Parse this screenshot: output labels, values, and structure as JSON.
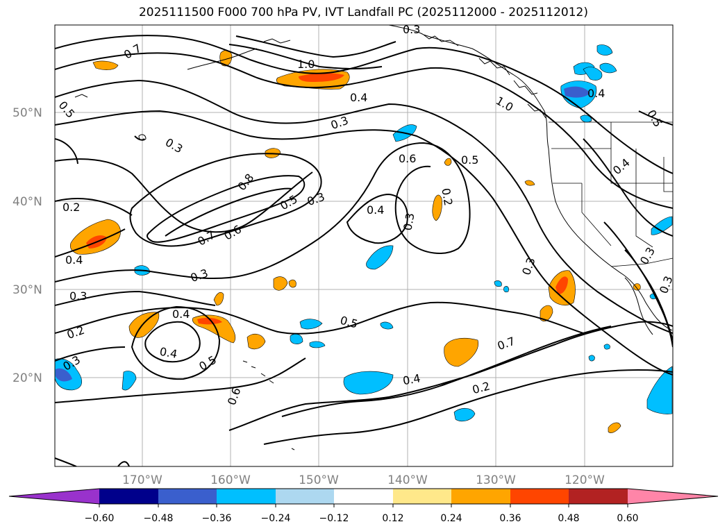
{
  "title": "2025111500 F000 700 hPa PV, IVT Landfall PC (2025112000 - 2025112012)",
  "map": {
    "lat_labels": [
      "50°N",
      "40°N",
      "30°N",
      "20°N"
    ],
    "lon_labels": [
      "170°W",
      "160°W",
      "150°W",
      "140°W",
      "130°W",
      "120°W"
    ],
    "contour_labels": [
      "0.7",
      "1.0",
      "0.4",
      "0.5",
      "0.3",
      "0.3",
      "0.6",
      "0.5",
      "0.8",
      "0.5",
      "0.3",
      "0.2",
      "0.4",
      "0.2",
      "0.3",
      "0.7",
      "0.6",
      "0.4",
      "0.3",
      "0.3",
      "0.3",
      "0.2",
      "0.4",
      "0.5",
      "0.3",
      "0.4",
      "0.5",
      "0.7",
      "0.4",
      "0.2",
      "0.6",
      "0.3",
      "1.0",
      "0.4",
      "0.5",
      "0.4",
      "0.3",
      "0.3"
    ]
  },
  "colorbar": {
    "colors": [
      "#9932cc",
      "#00008b",
      "#3a5fcd",
      "#00bfff",
      "#add8f0",
      "#ffffff",
      "#ffe88a",
      "#ffa500",
      "#ff4500",
      "#b22222",
      "#ff85a8"
    ],
    "tick_labels": [
      "−0.60",
      "−0.48",
      "−0.36",
      "−0.24",
      "−0.12",
      "0.12",
      "0.24",
      "0.36",
      "0.48",
      "0.60"
    ]
  }
}
